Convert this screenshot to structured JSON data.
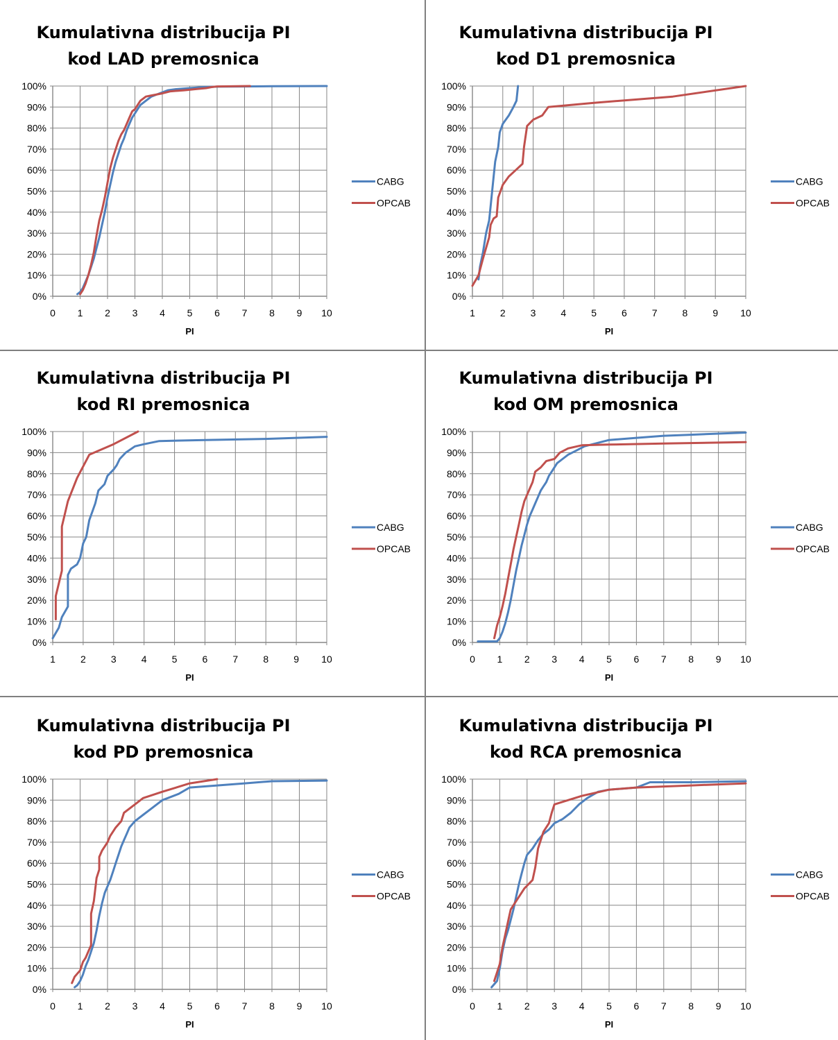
{
  "chart_data": [
    {
      "type": "line",
      "title": "Kumulativna distribucija PI kod LAD premosnica",
      "xlabel": "PI",
      "ylabel": "",
      "xlim": [
        0,
        10
      ],
      "ylim": [
        0,
        100
      ],
      "xticks": [
        "0",
        "1",
        "2",
        "3",
        "4",
        "5",
        "6",
        "7",
        "8",
        "9",
        "10"
      ],
      "yticks": [
        "0%",
        "10%",
        "20%",
        "30%",
        "40%",
        "50%",
        "60%",
        "70%",
        "80%",
        "90%",
        "100%"
      ],
      "grid": true,
      "legend": "right",
      "series": [
        {
          "name": "CABG",
          "color": "#4f81bd",
          "x": [
            0.9,
            1.0,
            1.1,
            1.2,
            1.3,
            1.4,
            1.5,
            1.6,
            1.7,
            1.8,
            1.9,
            2.0,
            2.1,
            2.2,
            2.3,
            2.4,
            2.5,
            2.6,
            2.7,
            2.8,
            2.9,
            3.0,
            3.1,
            3.2,
            3.4,
            3.6,
            3.8,
            4.0,
            4.2,
            4.5,
            5.0,
            5.5,
            6.0,
            7.0,
            8.0,
            10.0
          ],
          "y": [
            1,
            2,
            4,
            7,
            10,
            14,
            18,
            23,
            28,
            34,
            40,
            47,
            53,
            59,
            64,
            68,
            72,
            75,
            79,
            82,
            85,
            87,
            89,
            91,
            93,
            95,
            96,
            97,
            98,
            98.5,
            99,
            99.5,
            99.7,
            99.8,
            99.9,
            100
          ]
        },
        {
          "name": "OPCAB",
          "color": "#c0504d",
          "x": [
            1.0,
            1.1,
            1.2,
            1.3,
            1.4,
            1.5,
            1.6,
            1.7,
            1.8,
            1.9,
            2.0,
            2.1,
            2.2,
            2.3,
            2.4,
            2.5,
            2.6,
            2.7,
            2.8,
            2.9,
            3.0,
            3.1,
            3.2,
            3.4,
            3.6,
            3.8,
            4.0,
            4.3,
            4.8,
            5.2,
            5.6,
            5.8,
            6.0,
            7.2
          ],
          "y": [
            1,
            3,
            6,
            10,
            15,
            21,
            29,
            36,
            41,
            47,
            54,
            61,
            66,
            70,
            74,
            77,
            79,
            82,
            85,
            88,
            89,
            91,
            93,
            95,
            95.5,
            96,
            96.5,
            97.5,
            98,
            98.5,
            99,
            99.5,
            99.8,
            100
          ]
        }
      ]
    },
    {
      "type": "line",
      "title": "Kumulativna distribucija PI kod D1 premosnica",
      "xlabel": "PI",
      "ylabel": "",
      "xlim": [
        1,
        10
      ],
      "ylim": [
        0,
        100
      ],
      "xticks": [
        "1",
        "2",
        "3",
        "4",
        "5",
        "6",
        "7",
        "8",
        "9",
        "10"
      ],
      "yticks": [
        "0%",
        "10%",
        "20%",
        "30%",
        "40%",
        "50%",
        "60%",
        "70%",
        "80%",
        "90%",
        "100%"
      ],
      "grid": true,
      "legend": "right",
      "series": [
        {
          "name": "CABG",
          "color": "#4f81bd",
          "x": [
            1.2,
            1.25,
            1.35,
            1.45,
            1.55,
            1.6,
            1.7,
            1.75,
            1.85,
            1.9,
            2.0,
            2.2,
            2.35,
            2.45,
            2.5
          ],
          "y": [
            8,
            14,
            21,
            30,
            36,
            43,
            57,
            64,
            71,
            78,
            82,
            86,
            90,
            93,
            100
          ]
        },
        {
          "name": "OPCAB",
          "color": "#c0504d",
          "x": [
            1.0,
            1.2,
            1.35,
            1.55,
            1.6,
            1.7,
            1.8,
            1.85,
            2.0,
            2.2,
            2.5,
            2.65,
            2.7,
            2.8,
            3.0,
            3.3,
            3.5,
            5.0,
            7.6,
            10.0
          ],
          "y": [
            5,
            10,
            18,
            28,
            34,
            37,
            38,
            47,
            53,
            57,
            61,
            63,
            71,
            81,
            84,
            86,
            90,
            92,
            95,
            100
          ]
        }
      ]
    },
    {
      "type": "line",
      "title": "Kumulativna distribucija PI kod RI premosnica",
      "xlabel": "PI",
      "ylabel": "",
      "xlim": [
        1,
        10
      ],
      "ylim": [
        0,
        100
      ],
      "xticks": [
        "1",
        "2",
        "3",
        "4",
        "5",
        "6",
        "7",
        "8",
        "9",
        "10"
      ],
      "yticks": [
        "0%",
        "10%",
        "20%",
        "30%",
        "40%",
        "50%",
        "60%",
        "70%",
        "80%",
        "90%",
        "100%"
      ],
      "grid": true,
      "legend": "right",
      "series": [
        {
          "name": "CABG",
          "color": "#4f81bd",
          "x": [
            1.0,
            1.2,
            1.3,
            1.5,
            1.5,
            1.6,
            1.8,
            1.9,
            2.0,
            2.1,
            2.2,
            2.3,
            2.4,
            2.5,
            2.7,
            2.8,
            3.0,
            3.1,
            3.2,
            3.4,
            3.7,
            4.0,
            4.5,
            6.0,
            8.0,
            10.0
          ],
          "y": [
            2,
            7,
            12,
            17,
            32,
            35,
            37,
            40,
            47,
            50,
            58,
            62,
            66,
            72,
            75,
            79,
            82,
            84,
            87,
            90,
            93,
            94,
            95.5,
            96,
            96.5,
            97.5
          ]
        },
        {
          "name": "OPCAB",
          "color": "#c0504d",
          "x": [
            1.1,
            1.1,
            1.3,
            1.3,
            1.5,
            1.8,
            2.2,
            3.0,
            3.8
          ],
          "y": [
            11,
            22,
            34,
            55,
            67,
            78,
            89,
            94,
            100
          ]
        }
      ]
    },
    {
      "type": "line",
      "title": "Kumulativna distribucija PI kod OM premosnica",
      "xlabel": "PI",
      "ylabel": "",
      "xlim": [
        0,
        10
      ],
      "ylim": [
        0,
        100
      ],
      "xticks": [
        "0",
        "1",
        "2",
        "3",
        "4",
        "5",
        "6",
        "7",
        "8",
        "9",
        "10"
      ],
      "yticks": [
        "0%",
        "10%",
        "20%",
        "30%",
        "40%",
        "50%",
        "60%",
        "70%",
        "80%",
        "90%",
        "100%"
      ],
      "grid": true,
      "legend": "right",
      "series": [
        {
          "name": "CABG",
          "color": "#4f81bd",
          "x": [
            0.2,
            0.9,
            1.0,
            1.1,
            1.2,
            1.3,
            1.4,
            1.5,
            1.6,
            1.7,
            1.8,
            1.9,
            2.0,
            2.1,
            2.2,
            2.3,
            2.4,
            2.5,
            2.6,
            2.7,
            2.8,
            2.9,
            3.0,
            3.1,
            3.3,
            3.5,
            3.8,
            4.1,
            4.7,
            5.0,
            6.0,
            7.0,
            8.0,
            9.0,
            10.0
          ],
          "y": [
            0.5,
            0.5,
            2,
            5,
            9,
            14,
            20,
            27,
            34,
            40,
            46,
            51,
            56,
            60,
            63,
            66,
            69,
            72,
            74,
            76,
            79,
            81,
            83,
            85,
            87,
            89,
            91,
            93,
            95,
            96,
            97,
            98,
            98.5,
            99,
            99.5
          ]
        },
        {
          "name": "OPCAB",
          "color": "#c0504d",
          "x": [
            0.8,
            0.9,
            1.0,
            1.1,
            1.2,
            1.3,
            1.4,
            1.5,
            1.6,
            1.7,
            1.8,
            1.9,
            2.0,
            2.1,
            2.2,
            2.3,
            2.5,
            2.7,
            3.0,
            3.2,
            3.5,
            4.0,
            5.0,
            7.0,
            10.0
          ],
          "y": [
            2,
            8,
            12,
            17,
            23,
            30,
            37,
            44,
            50,
            56,
            62,
            67,
            70,
            73,
            76,
            81,
            83,
            86,
            87,
            90,
            92,
            93.5,
            93.8,
            94.3,
            95
          ]
        }
      ]
    },
    {
      "type": "line",
      "title": "Kumulativna distribucija PI kod PD premosnica",
      "xlabel": "PI",
      "ylabel": "",
      "xlim": [
        0,
        10
      ],
      "ylim": [
        0,
        100
      ],
      "xticks": [
        "0",
        "1",
        "2",
        "3",
        "4",
        "5",
        "6",
        "7",
        "8",
        "9",
        "10"
      ],
      "yticks": [
        "0%",
        "10%",
        "20%",
        "30%",
        "40%",
        "50%",
        "60%",
        "70%",
        "80%",
        "90%",
        "100%"
      ],
      "grid": true,
      "legend": "right",
      "series": [
        {
          "name": "CABG",
          "color": "#4f81bd",
          "x": [
            0.8,
            0.9,
            1.0,
            1.1,
            1.2,
            1.3,
            1.4,
            1.5,
            1.6,
            1.7,
            1.8,
            1.9,
            2.0,
            2.1,
            2.2,
            2.3,
            2.4,
            2.5,
            2.6,
            2.7,
            2.8,
            3.0,
            3.3,
            3.6,
            4.0,
            4.6,
            5.0,
            6.0,
            7.0,
            8.0,
            10.0
          ],
          "y": [
            1,
            2,
            4,
            7,
            11,
            14,
            18,
            22,
            28,
            35,
            41,
            46,
            49,
            52,
            56,
            60,
            64,
            68,
            71,
            74,
            77,
            80,
            83,
            86,
            90,
            93,
            96,
            97,
            98,
            99,
            99.3
          ]
        },
        {
          "name": "OPCAB",
          "color": "#c0504d",
          "x": [
            0.7,
            0.8,
            1.0,
            1.1,
            1.2,
            1.3,
            1.4,
            1.4,
            1.5,
            1.6,
            1.7,
            1.7,
            1.8,
            2.0,
            2.1,
            2.3,
            2.5,
            2.6,
            3.0,
            3.3,
            4.0,
            5.0,
            6.0
          ],
          "y": [
            3,
            6,
            9,
            13,
            15,
            18,
            21,
            36,
            42,
            53,
            57,
            63,
            66,
            70,
            73,
            77,
            80,
            84,
            88,
            91,
            94,
            98,
            100
          ]
        }
      ]
    },
    {
      "type": "line",
      "title": "Kumulativna distribucija PI kod RCA premosnica",
      "xlabel": "PI",
      "ylabel": "",
      "xlim": [
        0,
        10
      ],
      "ylim": [
        0,
        100
      ],
      "xticks": [
        "0",
        "1",
        "2",
        "3",
        "4",
        "5",
        "6",
        "7",
        "8",
        "9",
        "10"
      ],
      "yticks": [
        "0%",
        "10%",
        "20%",
        "30%",
        "40%",
        "50%",
        "60%",
        "70%",
        "80%",
        "90%",
        "100%"
      ],
      "grid": true,
      "legend": "right",
      "series": [
        {
          "name": "CABG",
          "color": "#4f81bd",
          "x": [
            0.7,
            0.9,
            1.0,
            1.1,
            1.2,
            1.3,
            1.4,
            1.5,
            1.6,
            1.7,
            1.8,
            1.9,
            2.0,
            2.2,
            2.4,
            2.6,
            2.8,
            3.0,
            3.3,
            3.6,
            3.9,
            4.2,
            4.6,
            5.0,
            6.0,
            6.5,
            8.0,
            10.0
          ],
          "y": [
            1,
            4,
            10,
            18,
            24,
            28,
            33,
            38,
            44,
            50,
            55,
            60,
            64,
            67,
            71,
            74,
            76,
            79,
            81,
            84,
            88,
            91,
            94,
            95,
            96,
            98.5,
            98.5,
            99
          ]
        },
        {
          "name": "OPCAB",
          "color": "#c0504d",
          "x": [
            0.8,
            1.0,
            1.1,
            1.2,
            1.3,
            1.4,
            1.5,
            1.7,
            1.9,
            2.2,
            2.3,
            2.4,
            2.6,
            2.8,
            2.9,
            3.0,
            3.5,
            4.0,
            5.0,
            6.0,
            8.0,
            10.0
          ],
          "y": [
            4,
            12,
            20,
            26,
            32,
            38,
            40,
            44,
            48,
            52,
            58,
            67,
            75,
            79,
            84,
            88,
            90,
            92,
            95,
            96,
            97,
            98
          ]
        }
      ]
    }
  ]
}
